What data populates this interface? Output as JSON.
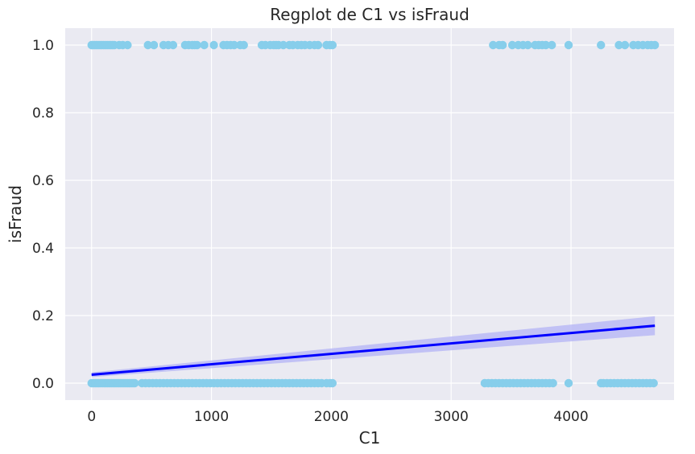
{
  "chart_data": {
    "type": "scatter",
    "title": "Regplot de C1 vs isFraud",
    "xlabel": "C1",
    "ylabel": "isFraud",
    "xlim": [
      -220,
      4860
    ],
    "ylim": [
      -0.05,
      1.05
    ],
    "xticks": [
      0,
      1000,
      2000,
      3000,
      4000
    ],
    "yticks": [
      0.0,
      0.2,
      0.4,
      0.6,
      0.8,
      1.0
    ],
    "xtick_labels": [
      "0",
      "1000",
      "2000",
      "3000",
      "4000"
    ],
    "ytick_labels": [
      "0.0",
      "0.2",
      "0.4",
      "0.6",
      "0.8",
      "1.0"
    ],
    "grid": true,
    "colors": {
      "background": "#EAEAF2",
      "grid": "#FFFFFF",
      "points": "#87CEEB",
      "line": "#0000FF",
      "band": "#B3B3F5"
    },
    "points": {
      "y1_x": [
        0,
        10,
        25,
        40,
        55,
        70,
        85,
        100,
        115,
        130,
        145,
        160,
        175,
        190,
        230,
        260,
        300,
        470,
        520,
        600,
        640,
        680,
        780,
        810,
        840,
        860,
        880,
        940,
        1020,
        1100,
        1130,
        1160,
        1190,
        1240,
        1270,
        1420,
        1450,
        1490,
        1520,
        1540,
        1560,
        1600,
        1650,
        1680,
        1720,
        1750,
        1780,
        1820,
        1860,
        1890,
        1960,
        1990,
        2010,
        3350,
        3400,
        3430,
        3510,
        3560,
        3600,
        3640,
        3700,
        3730,
        3760,
        3790,
        3840,
        3980,
        4250,
        4400,
        4450,
        4520,
        4560,
        4600,
        4640,
        4670,
        4700
      ],
      "y0_x": [
        0,
        15,
        30,
        45,
        60,
        75,
        90,
        105,
        120,
        135,
        150,
        165,
        180,
        195,
        210,
        225,
        240,
        255,
        270,
        285,
        300,
        315,
        330,
        345,
        360,
        420,
        450,
        480,
        510,
        540,
        570,
        600,
        630,
        660,
        690,
        720,
        750,
        780,
        810,
        840,
        870,
        900,
        930,
        960,
        990,
        1020,
        1050,
        1080,
        1110,
        1140,
        1170,
        1200,
        1230,
        1260,
        1290,
        1320,
        1350,
        1380,
        1410,
        1440,
        1470,
        1500,
        1530,
        1560,
        1590,
        1620,
        1650,
        1680,
        1710,
        1740,
        1770,
        1800,
        1830,
        1860,
        1890,
        1920,
        1960,
        1990,
        2010,
        3280,
        3310,
        3340,
        3370,
        3400,
        3430,
        3460,
        3490,
        3520,
        3550,
        3580,
        3610,
        3640,
        3670,
        3700,
        3730,
        3760,
        3790,
        3820,
        3850,
        3980,
        4250,
        4270,
        4300,
        4330,
        4360,
        4390,
        4420,
        4450,
        4480,
        4510,
        4540,
        4570,
        4600,
        4630,
        4660,
        4690
      ]
    },
    "regression": {
      "x": [
        0,
        4700
      ],
      "y": [
        0.025,
        0.17
      ],
      "ci_lower": [
        0.018,
        0.142
      ],
      "ci_upper": [
        0.032,
        0.198
      ]
    }
  }
}
